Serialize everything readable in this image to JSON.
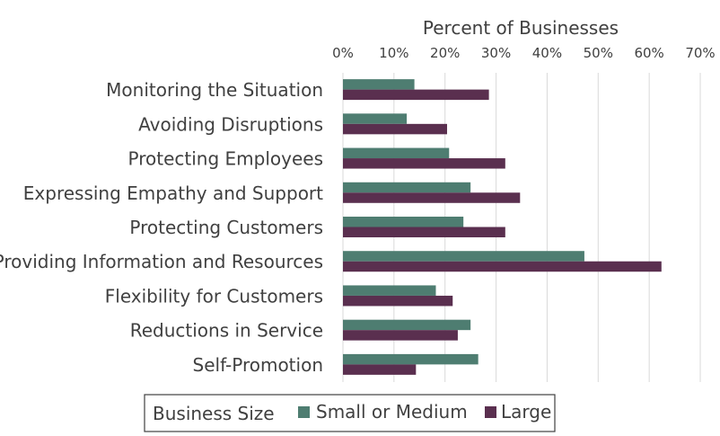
{
  "chart_data": {
    "type": "bar",
    "orientation": "horizontal",
    "xlabel": "Percent of Businesses",
    "xlim": [
      0,
      70
    ],
    "x_ticks": [
      "0%",
      "10%",
      "20%",
      "30%",
      "40%",
      "50%",
      "60%",
      "70%"
    ],
    "grid": true,
    "categories": [
      "Monitoring the Situation",
      "Avoiding Disruptions",
      "Protecting Employees",
      "Expressing Empathy and Support",
      "Protecting Customers",
      "Providing Information and Resources",
      "Flexibility for Customers",
      "Reductions in Service",
      "Self-Promotion"
    ],
    "series": [
      {
        "name": "Small or Medium",
        "color": "#4e7d71",
        "values": [
          14,
          12.5,
          20.8,
          25,
          23.6,
          47.3,
          18.2,
          25,
          26.5
        ]
      },
      {
        "name": "Large",
        "color": "#5a2f4f",
        "values": [
          28.6,
          20.4,
          31.8,
          34.7,
          31.8,
          62.4,
          21.5,
          22.5,
          14.3
        ]
      }
    ],
    "legend": {
      "title": "Business Size",
      "position": "bottom"
    }
  }
}
